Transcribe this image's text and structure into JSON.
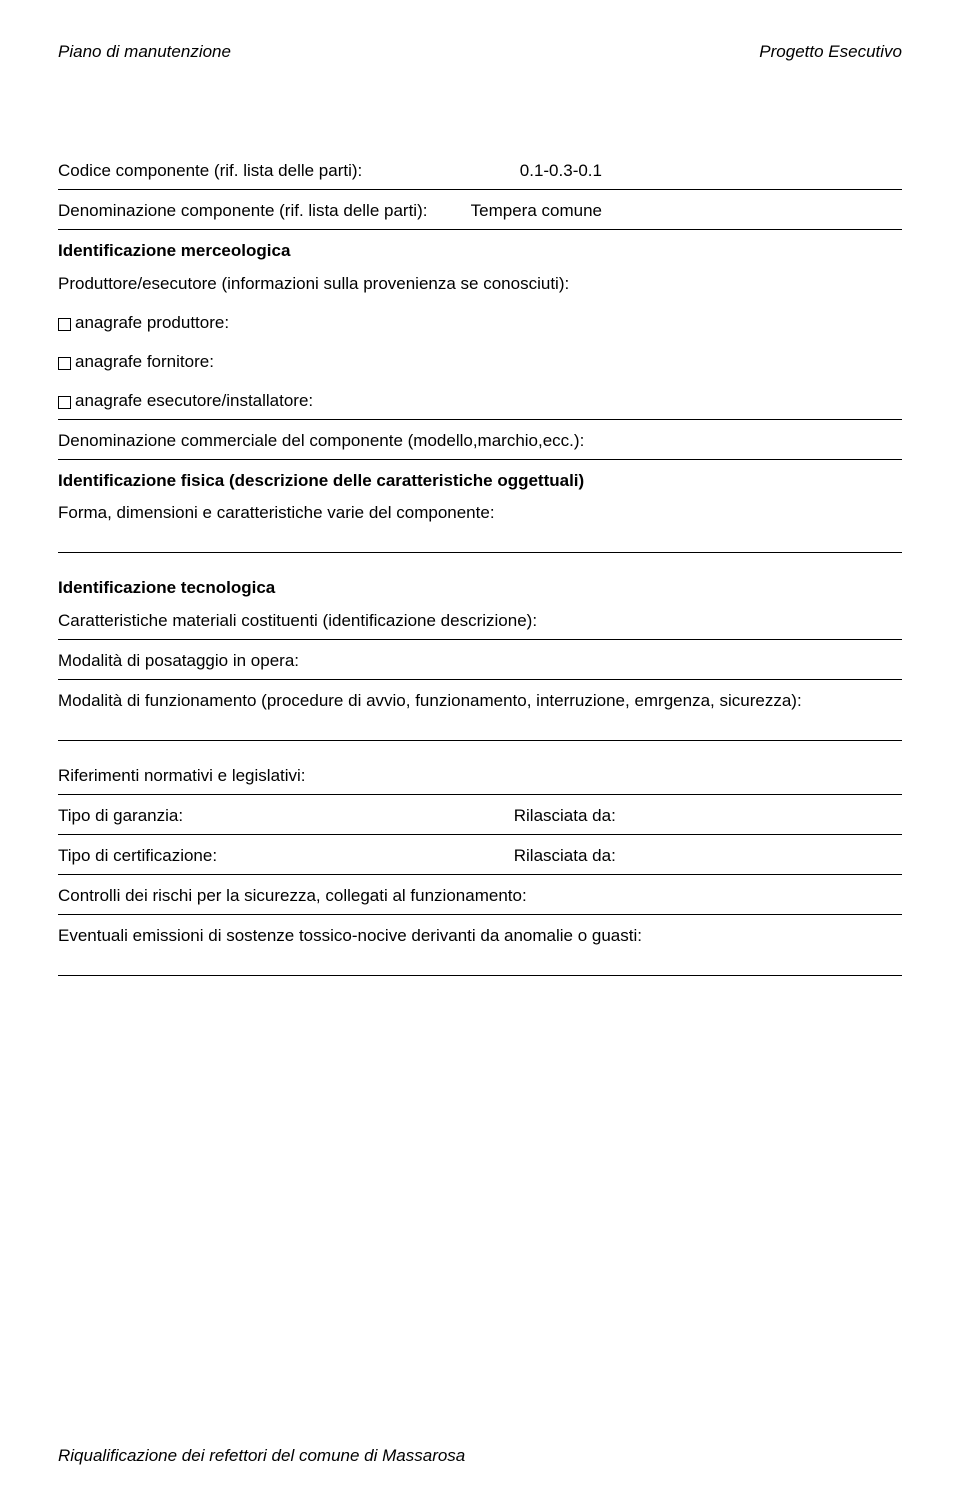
{
  "header": {
    "left": "Piano di manutenzione",
    "right": "Progetto Esecutivo"
  },
  "rows": {
    "codice_label": "Codice componente (rif. lista delle parti):",
    "codice_value": "0.1-0.3-0.1",
    "denom_label": "Denominazione componente  (rif. lista delle parti):",
    "denom_value": "Tempera comune"
  },
  "sections": {
    "merceologica": "Identificazione merceologica",
    "produttore_line": "Produttore/esecutore (informazioni sulla provenienza se conosciuti):",
    "anagrafe_produttore": "anagrafe produttore:",
    "anagrafe_fornitore": "anagrafe fornitore:",
    "anagrafe_esecutore": "anagrafe esecutore/installatore:",
    "denom_commerciale": "Denominazione commerciale del componente (modello,marchio,ecc.):",
    "fisica": "Identificazione fisica (descrizione delle caratteristiche oggettuali)",
    "forma": "Forma, dimensioni e caratteristiche varie del componente:",
    "tecnologica": "Identificazione tecnologica",
    "caratteristiche": "Caratteristiche materiali costituenti (identificazione descrizione):",
    "posataggio": "Modalità di posataggio in opera:",
    "funzionamento": "Modalità di funzionamento (procedure di avvio, funzionamento, interruzione, emrgenza, sicurezza):",
    "riferimenti": "Riferimenti normativi e legislativi:",
    "garanzia_label": "Tipo di garanzia:",
    "garanzia_value": "Rilasciata da:",
    "certificazione_label": "Tipo di certificazione:",
    "certificazione_value": "Rilasciata da:",
    "controlli": "Controlli dei rischi per la sicurezza, collegati al funzionamento:",
    "emissioni": "Eventuali emissioni di sostenze tossico-nocive derivanti da anomalie o guasti:"
  },
  "footer": "Riqualificazione dei refettori del comune di Massarosa"
}
